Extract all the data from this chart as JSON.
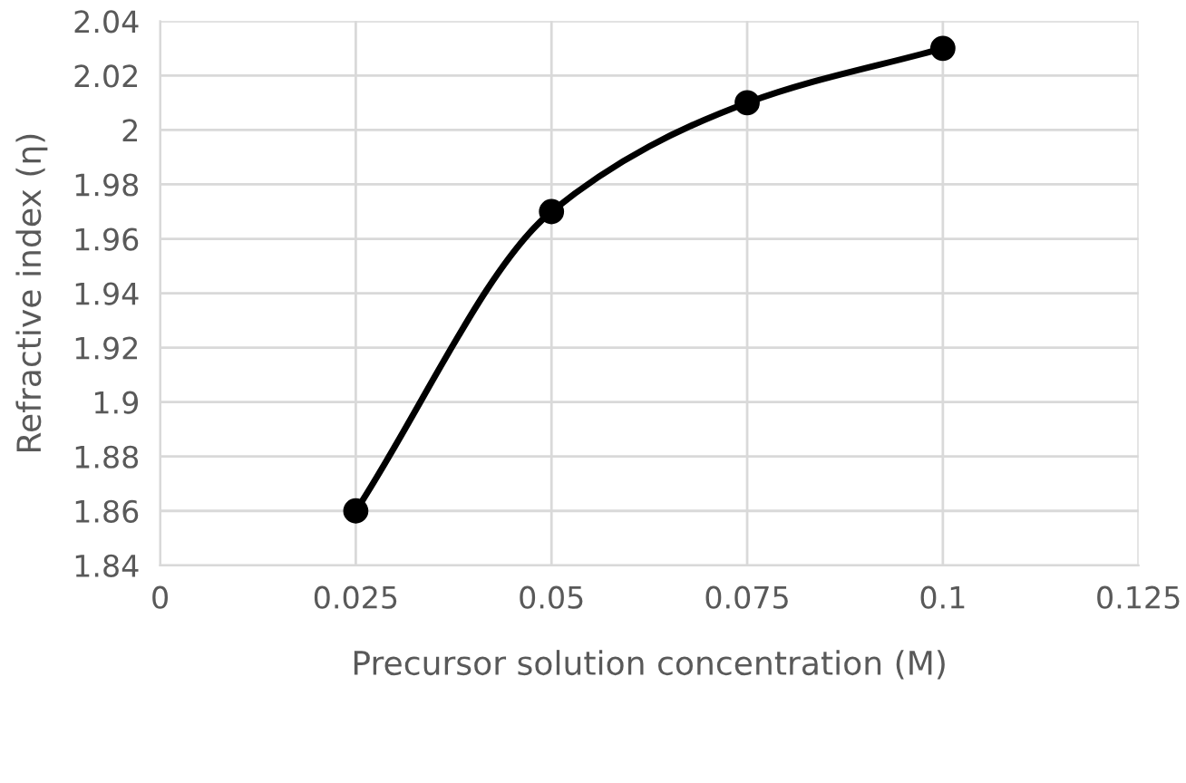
{
  "chart_data": {
    "type": "line",
    "xlabel": "Precursor solution concentration (M)",
    "ylabel": "Refractive index (η)",
    "x": [
      0.025,
      0.05,
      0.075,
      0.1
    ],
    "series": [
      {
        "color": "#000000",
        "values": [
          1.86,
          1.97,
          2.01,
          2.03
        ]
      }
    ],
    "xlim": [
      0,
      0.125
    ],
    "xticks": [
      0,
      0.025,
      0.05,
      0.075,
      0.1,
      0.125
    ],
    "ylim": [
      1.84,
      2.04
    ],
    "yticks": [
      1.84,
      1.86,
      1.88,
      1.9,
      1.92,
      1.94,
      1.96,
      1.98,
      2,
      2.02,
      2.04
    ],
    "grid": true,
    "marker": "circle",
    "line_style": "solid"
  }
}
